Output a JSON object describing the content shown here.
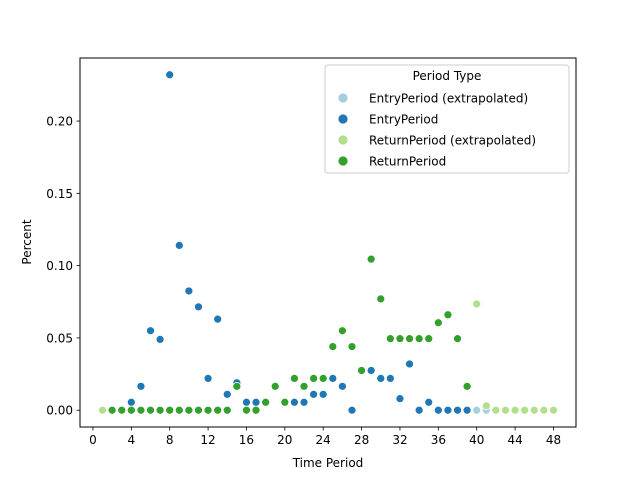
{
  "chart_data": {
    "type": "scatter",
    "title": "",
    "xlabel": "Time Period",
    "ylabel": "Percent",
    "xlim": [
      -1.35,
      50.35
    ],
    "ylim": [
      -0.0116,
      0.2436
    ],
    "xticks": [
      0,
      4,
      8,
      12,
      16,
      20,
      24,
      28,
      32,
      36,
      40,
      44,
      48
    ],
    "yticks": [
      0.0,
      0.05,
      0.1,
      0.15,
      0.2
    ],
    "ytick_labels": [
      "0.00",
      "0.05",
      "0.10",
      "0.15",
      "0.20"
    ],
    "grid": false,
    "legend": {
      "title": "Period Type",
      "placement": "top-right"
    },
    "series": [
      {
        "name": "EntryPeriod (extrapolated)",
        "color": "#a6cee3",
        "points": [
          [
            40,
            0.0
          ],
          [
            41,
            0.0
          ]
        ]
      },
      {
        "name": "EntryPeriod",
        "color": "#1f78b4",
        "points": [
          [
            4,
            0.0055
          ],
          [
            5,
            0.0165
          ],
          [
            6,
            0.055
          ],
          [
            7,
            0.049
          ],
          [
            8,
            0.232
          ],
          [
            9,
            0.114
          ],
          [
            10,
            0.0825
          ],
          [
            11,
            0.0715
          ],
          [
            12,
            0.022
          ],
          [
            13,
            0.063
          ],
          [
            14,
            0.011
          ],
          [
            15,
            0.019
          ],
          [
            16,
            0.0055
          ],
          [
            17,
            0.0055
          ],
          [
            20,
            0.0055
          ],
          [
            21,
            0.0055
          ],
          [
            22,
            0.0055
          ],
          [
            23,
            0.011
          ],
          [
            24,
            0.011
          ],
          [
            25,
            0.022
          ],
          [
            26,
            0.0165
          ],
          [
            27,
            0.0
          ],
          [
            29,
            0.0275
          ],
          [
            30,
            0.022
          ],
          [
            31,
            0.022
          ],
          [
            32,
            0.008
          ],
          [
            33,
            0.032
          ],
          [
            34,
            0.0
          ],
          [
            35,
            0.0055
          ],
          [
            36,
            0.0
          ],
          [
            37,
            0.0
          ],
          [
            38,
            0.0
          ],
          [
            39,
            0.0
          ]
        ]
      },
      {
        "name": "ReturnPeriod (extrapolated)",
        "color": "#b2df8a",
        "points": [
          [
            1,
            0.0
          ],
          [
            40,
            0.0735
          ],
          [
            41,
            0.003
          ],
          [
            42,
            0.0
          ],
          [
            43,
            0.0
          ],
          [
            44,
            0.0
          ],
          [
            45,
            0.0
          ],
          [
            46,
            0.0
          ],
          [
            47,
            0.0
          ],
          [
            48,
            0.0
          ]
        ]
      },
      {
        "name": "ReturnPeriod",
        "color": "#33a02c",
        "points": [
          [
            2,
            0.0
          ],
          [
            3,
            0.0
          ],
          [
            4,
            0.0
          ],
          [
            5,
            0.0
          ],
          [
            6,
            0.0
          ],
          [
            7,
            0.0
          ],
          [
            8,
            0.0
          ],
          [
            9,
            0.0
          ],
          [
            10,
            0.0
          ],
          [
            11,
            0.0
          ],
          [
            12,
            0.0
          ],
          [
            13,
            0.0
          ],
          [
            14,
            0.0
          ],
          [
            15,
            0.0165
          ],
          [
            16,
            0.0
          ],
          [
            17,
            0.0
          ],
          [
            18,
            0.0055
          ],
          [
            19,
            0.0165
          ],
          [
            20,
            0.0055
          ],
          [
            21,
            0.022
          ],
          [
            22,
            0.0165
          ],
          [
            23,
            0.022
          ],
          [
            24,
            0.022
          ],
          [
            25,
            0.044
          ],
          [
            26,
            0.055
          ],
          [
            27,
            0.044
          ],
          [
            28,
            0.0275
          ],
          [
            29,
            0.1045
          ],
          [
            30,
            0.077
          ],
          [
            31,
            0.0495
          ],
          [
            32,
            0.0495
          ],
          [
            33,
            0.0495
          ],
          [
            34,
            0.0495
          ],
          [
            35,
            0.0495
          ],
          [
            36,
            0.0605
          ],
          [
            37,
            0.066
          ],
          [
            38,
            0.0495
          ],
          [
            39,
            0.0165
          ]
        ]
      }
    ]
  }
}
